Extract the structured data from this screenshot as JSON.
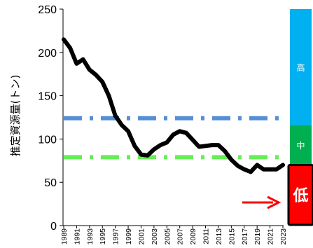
{
  "chart_data": {
    "type": "line",
    "ylabel": "推定資源量(トン)",
    "ylim": [
      0,
      250
    ],
    "yticks": [
      0,
      50,
      100,
      150,
      200,
      250
    ],
    "xlim": [
      1989,
      2023
    ],
    "xticks": [
      1989,
      1991,
      1993,
      1995,
      1997,
      1999,
      2001,
      2003,
      2005,
      2007,
      2009,
      2011,
      2013,
      2015,
      2017,
      2019,
      2021,
      2023
    ],
    "grid": false,
    "series": [
      {
        "color": "#000000",
        "x": [
          1989,
          1990,
          1991,
          1992,
          1993,
          1994,
          1995,
          1996,
          1997,
          1998,
          1999,
          2000,
          2001,
          2002,
          2003,
          2004,
          2005,
          2006,
          2007,
          2008,
          2009,
          2010,
          2011,
          2012,
          2013,
          2014,
          2015,
          2016,
          2017,
          2018,
          2019,
          2020,
          2021,
          2022,
          2023
        ],
        "values": [
          215,
          205,
          187,
          192,
          180,
          174,
          166,
          150,
          127,
          116,
          109,
          92,
          82,
          81,
          88,
          93,
          96,
          105,
          109,
          107,
          99,
          91,
          92,
          93,
          93,
          86,
          76,
          69,
          65,
          62,
          70,
          65,
          65,
          65,
          70
        ]
      }
    ],
    "reference_lines": [
      {
        "value": 124,
        "color": "#558ed5"
      },
      {
        "value": 79,
        "color": "#66ee55"
      }
    ],
    "zones": [
      {
        "label": "高",
        "from": 116,
        "to": 250,
        "color": "#00b0f0",
        "text_color": "#ffffff"
      },
      {
        "label": "中",
        "from": 70,
        "to": 116,
        "color": "#00b050",
        "text_color": "#ffffff"
      },
      {
        "label": "低",
        "from": 0,
        "to": 70,
        "color": "#ff0000",
        "text_color": "#ffffff"
      }
    ],
    "current_marker": {
      "color": "#ff0000",
      "points_to": "低"
    }
  }
}
